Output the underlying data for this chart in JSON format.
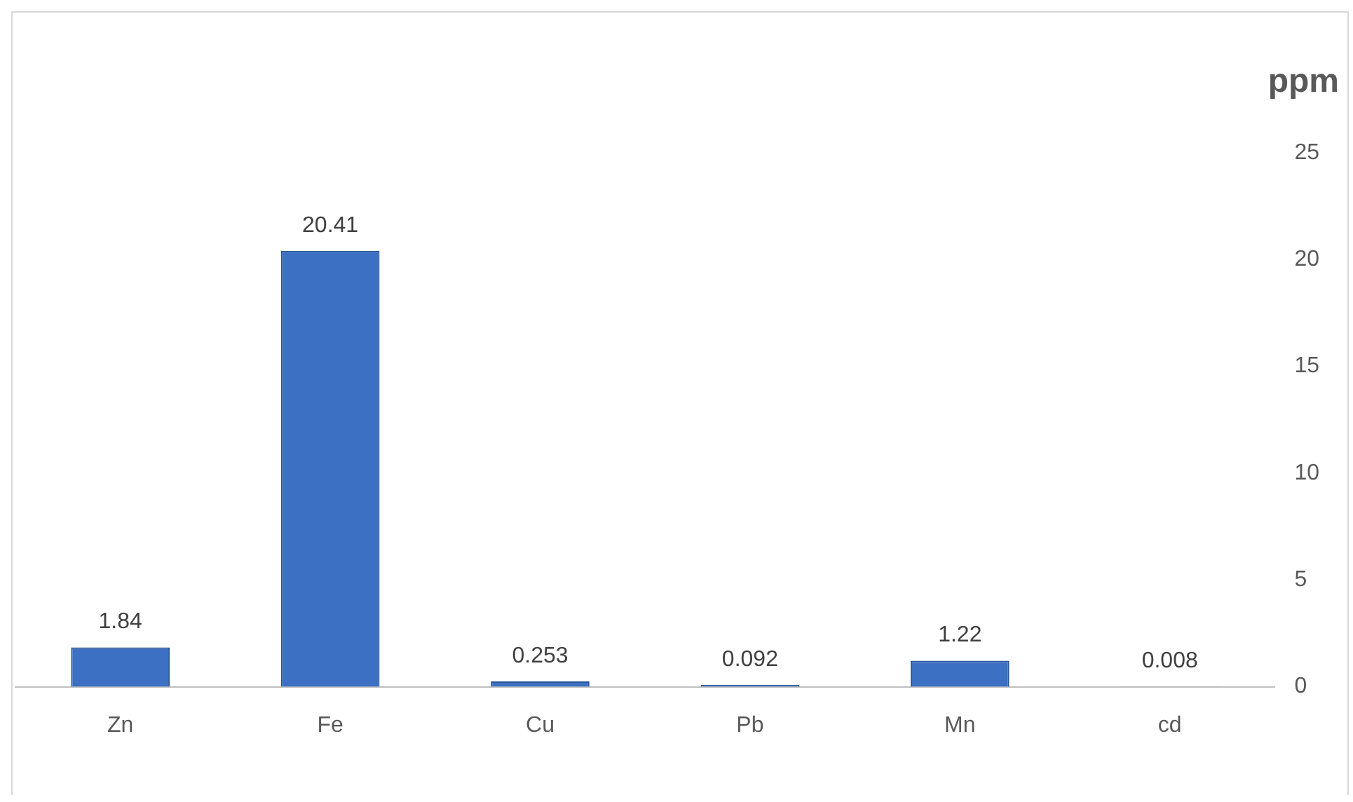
{
  "chart_data": {
    "type": "bar",
    "ylabel": "ppm",
    "categories": [
      "Zn",
      "Fe",
      "Cu",
      "Pb",
      "Mn",
      "cd"
    ],
    "values": [
      1.84,
      20.41,
      0.253,
      0.092,
      1.22,
      0.008
    ],
    "value_labels": [
      "1.84",
      "20.41",
      "0.253",
      "0.092",
      "1.22",
      "0.008"
    ],
    "color": "#3b70c2",
    "ylim": [
      0,
      25
    ],
    "yticks": [
      0,
      5,
      10,
      15,
      20,
      25
    ],
    "grid": false,
    "legend": false
  }
}
